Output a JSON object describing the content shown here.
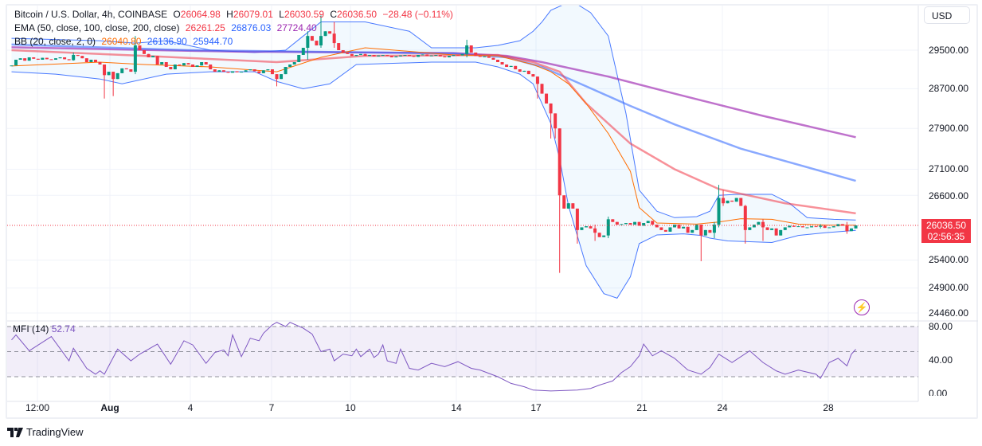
{
  "header": {
    "symbol": "Bitcoin / U.S. Dollar, 4h, COINBASE",
    "open_label": "O",
    "open": "26064.98",
    "high_label": "H",
    "high": "26079.01",
    "low_label": "L",
    "low": "26030.59",
    "close_label": "C",
    "close": "26036.50",
    "change": "−28.48 (−0.11%)",
    "ema_label": "EMA (50, close, 100, close, 200, close)",
    "ema_values": [
      "26261.25",
      "26876.03",
      "27724.40"
    ],
    "bb_label": "BB (20, close, 2, 0)",
    "bb_values": [
      "26040.80",
      "26136.90",
      "25944.70"
    ]
  },
  "currency_button": "USD",
  "price_ticks": [
    "29500.00",
    "28700.00",
    "27900.00",
    "27100.00",
    "26600.00",
    "25400.00",
    "24900.00",
    "24460.00"
  ],
  "current_price": {
    "price": "26036.50",
    "countdown": "02:56:35"
  },
  "mfi": {
    "label": "MFI (14)",
    "value": "52.74",
    "ticks": [
      "80.00",
      "40.00",
      "0.00"
    ]
  },
  "x_ticks": [
    "12:00",
    "Aug",
    "4",
    "7",
    "10",
    "14",
    "17",
    "21",
    "24",
    "28"
  ],
  "footer": {
    "brand": "TradingView"
  },
  "colors": {
    "up": "#089981",
    "down": "#f23645",
    "ema50": "#f23645",
    "ema100": "#2962ff",
    "ema200": "#9c27b0",
    "bb_basis": "#ff6d00",
    "bb_bands": "#2962ff",
    "mfi": "#7e57c2"
  },
  "icons": [
    "lightning-icon",
    "tradingview-logo-icon"
  ],
  "chart_data": {
    "type": "candlestick",
    "interval": "4h",
    "y_scale": "log",
    "ylim": [
      24460,
      30500
    ],
    "grid": true,
    "closes": [
      29180,
      29300,
      29330,
      29280,
      29350,
      29320,
      29300,
      29340,
      29310,
      29300,
      29330,
      29350,
      29310,
      29290,
      29400,
      29380,
      29330,
      29250,
      29300,
      29250,
      29200,
      28980,
      29050,
      28900,
      29020,
      29120,
      29100,
      29050,
      29600,
      29500,
      29420,
      29350,
      29380,
      29200,
      29250,
      29150,
      29100,
      29200,
      29180,
      29230,
      29200,
      29150,
      29180,
      29250,
      29200,
      29100,
      29050,
      29080,
      29050,
      29030,
      29060,
      29040,
      29050,
      29080,
      29100,
      29060,
      29020,
      29080,
      29100,
      29000,
      28900,
      29000,
      29150,
      29200,
      29250,
      29400,
      29550,
      29800,
      29700,
      29600,
      29800,
      29900,
      29850,
      29650,
      29500,
      29450,
      29420,
      29380,
      29400,
      29420,
      29380,
      29400,
      29370,
      29390,
      29400,
      29380,
      29350,
      29370,
      29390,
      29400,
      29380,
      29360,
      29400,
      29410,
      29380,
      29390,
      29400,
      29370,
      29350,
      29380,
      29400,
      29390,
      29420,
      29600,
      29450,
      29380,
      29360,
      29370,
      29340,
      29300,
      29250,
      29200,
      29150,
      29170,
      29100,
      29050,
      29070,
      29000,
      28950,
      28800,
      28600,
      28400,
      28200,
      27900,
      26600,
      26350,
      26450,
      26350,
      25950,
      26000,
      26020,
      25980,
      25900,
      25820,
      25850,
      26150,
      26100,
      26050,
      26060,
      26080,
      26050,
      26100,
      26030,
      26080,
      26120,
      26050,
      26000,
      25950,
      25920,
      26000,
      26050,
      25980,
      26010,
      25900,
      25950,
      26050,
      25850,
      25950,
      25900,
      26050,
      26550,
      26450,
      26500,
      26480,
      26550,
      26400,
      25950,
      26000,
      26050,
      26100,
      26000,
      25950,
      25980,
      25850,
      25950,
      26000,
      26030,
      26010,
      26020,
      26000,
      26000,
      26020,
      26010,
      26030,
      25990,
      26000,
      26020,
      26060,
      26030,
      25930,
      25980,
      26036.5
    ],
    "extremes": {
      "14": [
        29450,
        29280
      ],
      "21": [
        29200,
        28500
      ],
      "23": [
        29050,
        28550
      ],
      "28": [
        29800,
        29000
      ],
      "60": [
        29000,
        28750
      ],
      "67": [
        29900,
        29300
      ],
      "70": [
        30240,
        29550
      ],
      "73": [
        30100,
        29550
      ],
      "103": [
        29720,
        29350
      ],
      "119": [
        28950,
        28500
      ],
      "122": [
        28400,
        27700
      ],
      "123": [
        28200,
        27700
      ],
      "124": [
        27900,
        25170
      ],
      "128": [
        26350,
        25700
      ],
      "132": [
        26050,
        25750
      ],
      "135": [
        26200,
        25800
      ],
      "156": [
        26050,
        25380
      ],
      "159": [
        26100,
        25800
      ],
      "160": [
        26800,
        26000
      ],
      "161": [
        26700,
        26400
      ],
      "166": [
        26420,
        25700
      ],
      "170": [
        26150,
        25750
      ],
      "183": [
        26060,
        25980
      ],
      "189": [
        26100,
        25880
      ]
    },
    "series": [
      {
        "name": "EMA 200",
        "points": [
          [
            0,
            29560
          ],
          [
            50,
            29470
          ],
          [
            100,
            29440
          ],
          [
            112,
            29380
          ],
          [
            120,
            29250
          ],
          [
            135,
            28950
          ],
          [
            150,
            28600
          ],
          [
            170,
            28150
          ],
          [
            191,
            27724.4
          ]
        ]
      },
      {
        "name": "EMA 100",
        "points": [
          [
            0,
            29620
          ],
          [
            40,
            29500
          ],
          [
            100,
            29430
          ],
          [
            112,
            29350
          ],
          [
            120,
            29150
          ],
          [
            130,
            28750
          ],
          [
            140,
            28350
          ],
          [
            150,
            27980
          ],
          [
            165,
            27500
          ],
          [
            191,
            26876.03
          ]
        ]
      },
      {
        "name": "EMA 50",
        "points": [
          [
            0,
            29500
          ],
          [
            30,
            29380
          ],
          [
            60,
            29250
          ],
          [
            80,
            29380
          ],
          [
            110,
            29400
          ],
          [
            118,
            29250
          ],
          [
            124,
            29050
          ],
          [
            130,
            28400
          ],
          [
            140,
            27600
          ],
          [
            150,
            27100
          ],
          [
            160,
            26720
          ],
          [
            175,
            26450
          ],
          [
            191,
            26261.25
          ]
        ]
      },
      {
        "name": "BB basis",
        "points": [
          [
            0,
            29170
          ],
          [
            20,
            29250
          ],
          [
            30,
            29200
          ],
          [
            45,
            29150
          ],
          [
            60,
            29050
          ],
          [
            70,
            29350
          ],
          [
            80,
            29550
          ],
          [
            100,
            29400
          ],
          [
            110,
            29380
          ],
          [
            118,
            29200
          ],
          [
            122,
            29050
          ],
          [
            126,
            28800
          ],
          [
            130,
            28400
          ],
          [
            135,
            27800
          ],
          [
            140,
            27060
          ],
          [
            142,
            26370
          ],
          [
            146,
            26080
          ],
          [
            155,
            26060
          ],
          [
            160,
            26100
          ],
          [
            165,
            26160
          ],
          [
            172,
            26150
          ],
          [
            178,
            26060
          ],
          [
            185,
            26040
          ],
          [
            191,
            26040.8
          ]
        ]
      },
      {
        "name": "BB upper",
        "points": [
          [
            0,
            29750
          ],
          [
            20,
            29700
          ],
          [
            28,
            29650
          ],
          [
            35,
            29700
          ],
          [
            45,
            29500
          ],
          [
            55,
            29450
          ],
          [
            62,
            29500
          ],
          [
            66,
            29800
          ],
          [
            70,
            30100
          ],
          [
            80,
            30100
          ],
          [
            90,
            29900
          ],
          [
            95,
            29550
          ],
          [
            105,
            29550
          ],
          [
            110,
            29600
          ],
          [
            115,
            29700
          ],
          [
            118,
            29900
          ],
          [
            120,
            30100
          ],
          [
            122,
            30350
          ],
          [
            125,
            30480
          ],
          [
            128,
            30480
          ],
          [
            131,
            30300
          ],
          [
            135,
            29800
          ],
          [
            139,
            28200
          ],
          [
            142,
            26700
          ],
          [
            146,
            26300
          ],
          [
            150,
            26180
          ],
          [
            155,
            26200
          ],
          [
            158,
            26300
          ],
          [
            160,
            26600
          ],
          [
            164,
            26620
          ],
          [
            172,
            26620
          ],
          [
            176,
            26450
          ],
          [
            180,
            26180
          ],
          [
            186,
            26150
          ],
          [
            191,
            26136.9
          ]
        ]
      },
      {
        "name": "BB lower",
        "points": [
          [
            0,
            29050
          ],
          [
            10,
            29000
          ],
          [
            20,
            28900
          ],
          [
            25,
            28800
          ],
          [
            35,
            29000
          ],
          [
            45,
            29050
          ],
          [
            55,
            29050
          ],
          [
            60,
            28850
          ],
          [
            66,
            28700
          ],
          [
            72,
            28800
          ],
          [
            78,
            29200
          ],
          [
            95,
            29250
          ],
          [
            105,
            29250
          ],
          [
            110,
            29150
          ],
          [
            115,
            29000
          ],
          [
            118,
            28800
          ],
          [
            122,
            28000
          ],
          [
            124,
            27300
          ],
          [
            126,
            26400
          ],
          [
            130,
            25300
          ],
          [
            134,
            24800
          ],
          [
            137,
            24720
          ],
          [
            140,
            25100
          ],
          [
            142,
            25700
          ],
          [
            146,
            25860
          ],
          [
            152,
            25880
          ],
          [
            156,
            25850
          ],
          [
            158,
            25800
          ],
          [
            162,
            25750
          ],
          [
            172,
            25720
          ],
          [
            178,
            25850
          ],
          [
            184,
            25900
          ],
          [
            191,
            25944.7
          ]
        ]
      }
    ],
    "mfi_points": [
      [
        0,
        64
      ],
      [
        1,
        70
      ],
      [
        4,
        51
      ],
      [
        9,
        68
      ],
      [
        13,
        39
      ],
      [
        14,
        54
      ],
      [
        17,
        30
      ],
      [
        19,
        23
      ],
      [
        20,
        27
      ],
      [
        21,
        23
      ],
      [
        24,
        53
      ],
      [
        27,
        39
      ],
      [
        29,
        47
      ],
      [
        33,
        59
      ],
      [
        36,
        35
      ],
      [
        37,
        44
      ],
      [
        39,
        63
      ],
      [
        41,
        58
      ],
      [
        44,
        36
      ],
      [
        46,
        49
      ],
      [
        48,
        52
      ],
      [
        49,
        45
      ],
      [
        50,
        70
      ],
      [
        52,
        44
      ],
      [
        54,
        66
      ],
      [
        56,
        63
      ],
      [
        57,
        72
      ],
      [
        59,
        82
      ],
      [
        60,
        85
      ],
      [
        62,
        80
      ],
      [
        63,
        85
      ],
      [
        66,
        78
      ],
      [
        68,
        71
      ],
      [
        70,
        50
      ],
      [
        72,
        53
      ],
      [
        73,
        39
      ],
      [
        75,
        47
      ],
      [
        77,
        45
      ],
      [
        78,
        53
      ],
      [
        79,
        44
      ],
      [
        81,
        53
      ],
      [
        82,
        43
      ],
      [
        83,
        47
      ],
      [
        84,
        58
      ],
      [
        85,
        39
      ],
      [
        87,
        36
      ],
      [
        88,
        53
      ],
      [
        90,
        30
      ],
      [
        92,
        28
      ],
      [
        95,
        36
      ],
      [
        98,
        32
      ],
      [
        101,
        38
      ],
      [
        104,
        30
      ],
      [
        106,
        28
      ],
      [
        110,
        20
      ],
      [
        113,
        12
      ],
      [
        116,
        8
      ],
      [
        118,
        4
      ],
      [
        122,
        3
      ],
      [
        128,
        4
      ],
      [
        131,
        6
      ],
      [
        133,
        10
      ],
      [
        136,
        15
      ],
      [
        138,
        25
      ],
      [
        140,
        32
      ],
      [
        142,
        45
      ],
      [
        143,
        59
      ],
      [
        145,
        45
      ],
      [
        147,
        51
      ],
      [
        150,
        42
      ],
      [
        153,
        28
      ],
      [
        156,
        23
      ],
      [
        158,
        31
      ],
      [
        160,
        47
      ],
      [
        163,
        37
      ],
      [
        167,
        51
      ],
      [
        170,
        37
      ],
      [
        173,
        27
      ],
      [
        175,
        23
      ],
      [
        178,
        28
      ],
      [
        182,
        23
      ],
      [
        183,
        18
      ],
      [
        185,
        37
      ],
      [
        187,
        42
      ],
      [
        189,
        33
      ],
      [
        190,
        47
      ],
      [
        191,
        52.74
      ]
    ],
    "mfi_bands": [
      20,
      50,
      80
    ],
    "mfi_ylim": [
      0,
      80
    ]
  }
}
